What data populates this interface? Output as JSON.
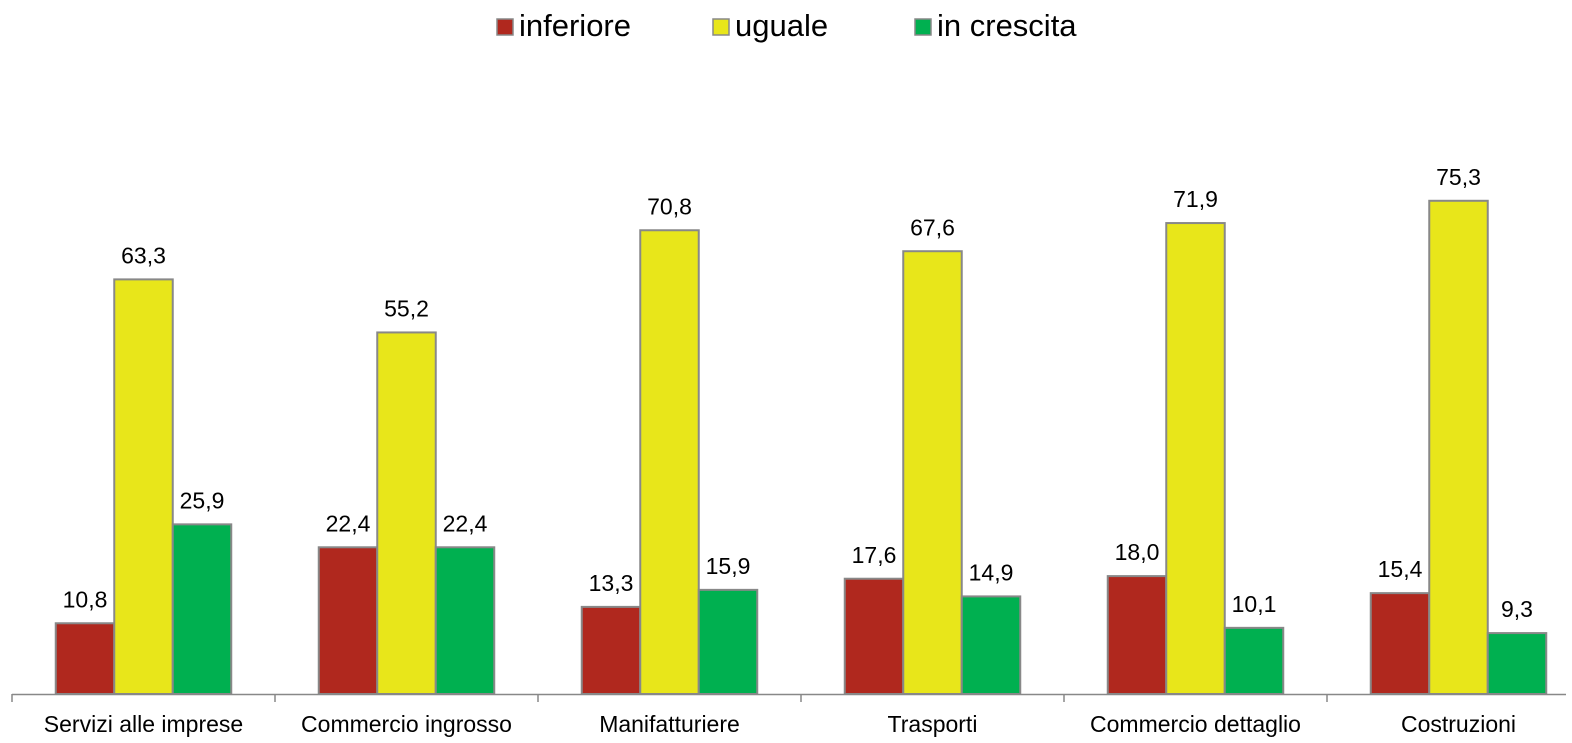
{
  "chart_data": {
    "type": "bar",
    "categories": [
      "Servizi alle imprese",
      "Commercio ingrosso",
      "Manifatturiere",
      "Trasporti",
      "Commercio dettaglio",
      "Costruzioni"
    ],
    "series": [
      {
        "name": "inferiore",
        "color": "#b0281e",
        "values": [
          10.8,
          22.4,
          13.3,
          17.6,
          18.0,
          15.4
        ],
        "value_labels": [
          "10,8",
          "22,4",
          "13,3",
          "17,6",
          "18,0",
          "15,4"
        ]
      },
      {
        "name": "uguale",
        "color": "#e8e61a",
        "values": [
          63.3,
          55.2,
          70.8,
          67.6,
          71.9,
          75.3
        ],
        "value_labels": [
          "63,3",
          "55,2",
          "70,8",
          "67,6",
          "71,9",
          "75,3"
        ]
      },
      {
        "name": "in crescita",
        "color": "#00b050",
        "values": [
          25.9,
          22.4,
          15.9,
          14.9,
          10.1,
          9.3
        ],
        "value_labels": [
          "25,9",
          "22,4",
          "15,9",
          "14,9",
          "10,1",
          "9,3"
        ]
      }
    ],
    "ylim": [
      0,
      80
    ],
    "legend": "top"
  }
}
